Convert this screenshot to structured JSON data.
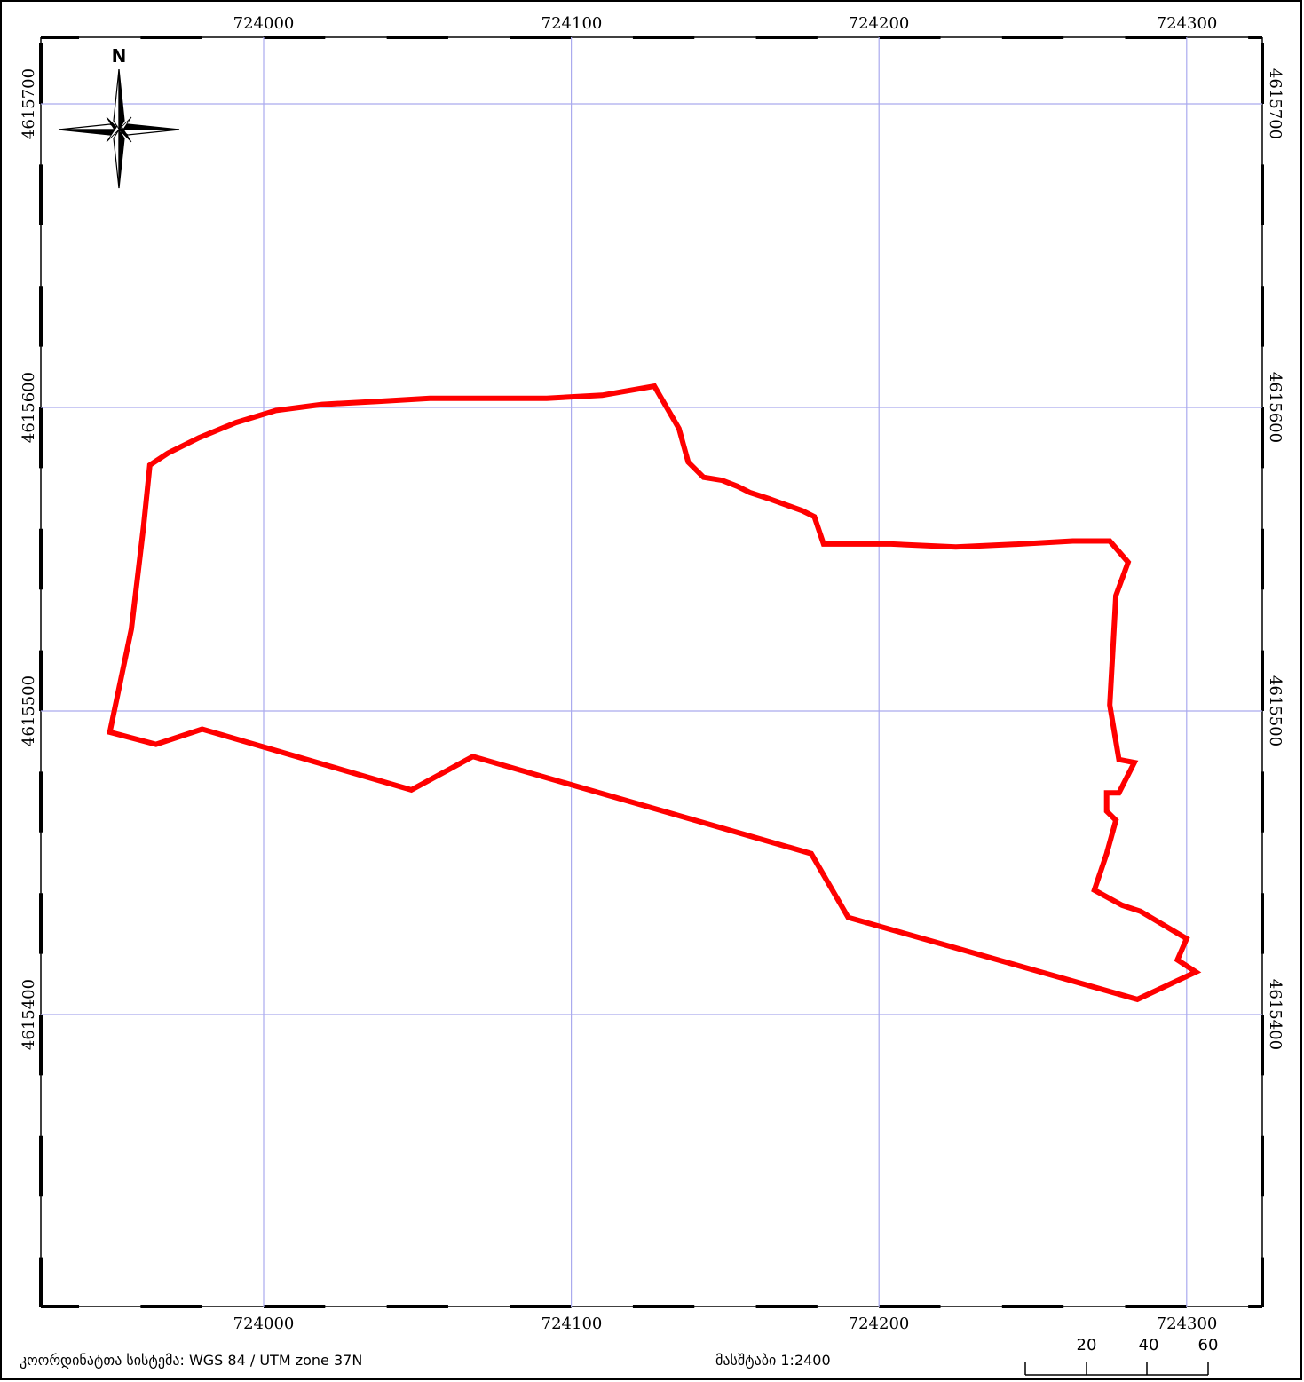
{
  "map": {
    "grid_x_labels": [
      "724000",
      "724100",
      "724200",
      "724300"
    ],
    "grid_y_labels": [
      "4615700",
      "4615600",
      "4615500",
      "4615400"
    ],
    "grid_color": "#aaaaee",
    "frame_color": "#000000",
    "parcel_outline_color": "#ff0000",
    "north_arrow_label": "N",
    "north_arrow_icon": "north-arrow-compass-rose",
    "parcel_boundary_utm": [
      [
        724127,
        4615607
      ],
      [
        724135,
        4615593
      ],
      [
        724138,
        4615582
      ],
      [
        724143,
        4615577
      ],
      [
        724149,
        4615576
      ],
      [
        724154,
        4615574
      ],
      [
        724158,
        4615572
      ],
      [
        724164,
        4615570
      ],
      [
        724175,
        4615566
      ],
      [
        724179,
        4615564
      ],
      [
        724182,
        4615555
      ],
      [
        724204,
        4615555
      ],
      [
        724225,
        4615554
      ],
      [
        724246,
        4615555
      ],
      [
        724263,
        4615556
      ],
      [
        724275,
        4615556
      ],
      [
        724281,
        4615549
      ],
      [
        724277,
        4615538
      ],
      [
        724275,
        4615502
      ],
      [
        724278,
        4615484
      ],
      [
        724283,
        4615483
      ],
      [
        724278,
        4615473
      ],
      [
        724274,
        4615473
      ],
      [
        724274,
        4615467
      ],
      [
        724277,
        4615464
      ],
      [
        724274,
        4615453
      ],
      [
        724270,
        4615441
      ],
      [
        724279,
        4615436
      ],
      [
        724285,
        4615434
      ],
      [
        724300,
        4615425
      ],
      [
        724297,
        4615418
      ],
      [
        724303,
        4615414
      ],
      [
        724284,
        4615405
      ],
      [
        724190,
        4615432
      ],
      [
        724178,
        4615453
      ],
      [
        724068,
        4615485
      ],
      [
        724048,
        4615474
      ],
      [
        723980,
        4615494
      ],
      [
        723965,
        4615489
      ],
      [
        723950,
        4615493
      ],
      [
        723957,
        4615527
      ],
      [
        723961,
        4615561
      ],
      [
        723963,
        4615581
      ],
      [
        723969,
        4615585
      ],
      [
        723979,
        4615590
      ],
      [
        723991,
        4615595
      ],
      [
        724004,
        4615599
      ],
      [
        724019,
        4615601
      ],
      [
        724037,
        4615602
      ],
      [
        724054,
        4615603
      ],
      [
        724074,
        4615603
      ],
      [
        724092,
        4615603
      ],
      [
        724110,
        4615604
      ],
      [
        724127,
        4615607
      ]
    ]
  },
  "footer": {
    "crs_text": "კოორდინატთა სისტემა: WGS 84 / UTM zone 37N",
    "scale_text": "მასშტაბი 1:2400",
    "scalebar_ticks": [
      "20",
      "40",
      "60"
    ]
  }
}
